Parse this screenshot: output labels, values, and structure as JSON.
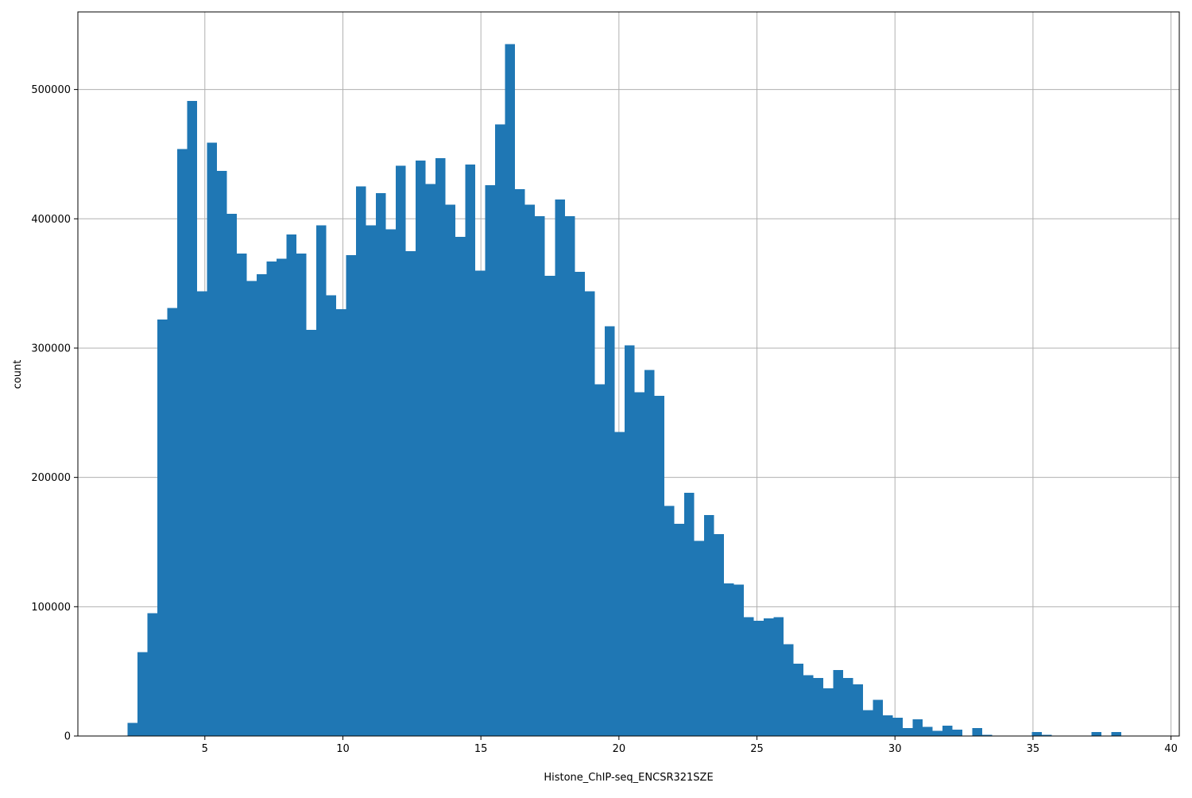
{
  "chart_data": {
    "type": "bar",
    "subtype": "histogram",
    "title": "",
    "xlabel": "Histone_ChIP-seq_ENCSR321SZE",
    "ylabel": "count",
    "xlim": [
      0.4,
      40.3
    ],
    "ylim": [
      0,
      560000
    ],
    "xticks": [
      5,
      10,
      15,
      20,
      25,
      30,
      35,
      40
    ],
    "yticks": [
      0,
      100000,
      200000,
      300000,
      400000,
      500000
    ],
    "grid": true,
    "bar_color": "#1f77b4",
    "bin_start": 2.2,
    "bin_width": 0.36,
    "counts": [
      10000,
      65000,
      95000,
      322000,
      331000,
      454000,
      491000,
      344000,
      459000,
      437000,
      404000,
      373000,
      352000,
      357000,
      367000,
      369000,
      388000,
      373000,
      314000,
      395000,
      341000,
      330000,
      372000,
      425000,
      395000,
      420000,
      392000,
      441000,
      375000,
      445000,
      427000,
      447000,
      411000,
      386000,
      442000,
      360000,
      426000,
      473000,
      535000,
      423000,
      411000,
      402000,
      356000,
      415000,
      402000,
      359000,
      344000,
      272000,
      317000,
      235000,
      302000,
      266000,
      283000,
      263000,
      178000,
      164000,
      188000,
      151000,
      171000,
      156000,
      118000,
      117000,
      92000,
      89000,
      91000,
      92000,
      71000,
      56000,
      47000,
      45000,
      37000,
      51000,
      45000,
      40000,
      20000,
      28000,
      16000,
      14000,
      6000,
      13000,
      7000,
      4000,
      8000,
      5000,
      0,
      6000,
      1000,
      0,
      0,
      0,
      0,
      3000,
      1000,
      0,
      0,
      0,
      0,
      3000,
      0,
      3000
    ]
  }
}
